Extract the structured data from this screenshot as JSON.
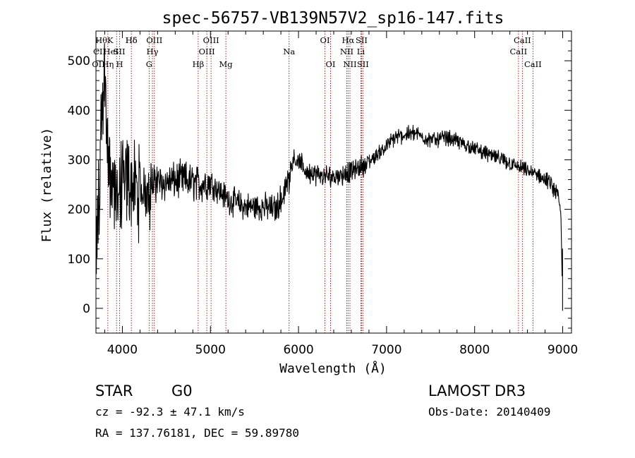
{
  "chart_data": {
    "type": "line",
    "title": "spec-56757-VB139N57V2_sp16-147.fits",
    "xlabel": "Wavelength (Å)",
    "ylabel": "Flux (relative)",
    "xlim": [
      3700,
      9100
    ],
    "ylim": [
      -50,
      560
    ],
    "xticks": [
      4000,
      5000,
      6000,
      7000,
      8000,
      9000
    ],
    "yticks": [
      0,
      100,
      200,
      300,
      400,
      500
    ],
    "grid": false,
    "line_color": "#000000",
    "marker_color": "#a01010",
    "spectrum_anchors": {
      "x": [
        3705,
        3720,
        3740,
        3770,
        3800,
        3830,
        3870,
        3920,
        3970,
        4020,
        4080,
        4150,
        4250,
        4350,
        4500,
        4700,
        4850,
        5000,
        5200,
        5400,
        5600,
        5750,
        5850,
        5950,
        6100,
        6300,
        6500,
        6650,
        6800,
        6950,
        7100,
        7300,
        7500,
        7700,
        7900,
        8100,
        8300,
        8500,
        8700,
        8850,
        8950,
        8980,
        8995,
        9000
      ],
      "y": [
        60,
        180,
        250,
        420,
        480,
        330,
        260,
        240,
        230,
        250,
        260,
        240,
        230,
        250,
        255,
        260,
        250,
        255,
        220,
        205,
        205,
        200,
        250,
        305,
        275,
        265,
        270,
        280,
        295,
        320,
        345,
        355,
        340,
        345,
        330,
        315,
        300,
        285,
        270,
        255,
        225,
        190,
        50,
        -5
      ]
    },
    "lines": [
      {
        "name": "Hη",
        "wavelength": 3835
      },
      {
        "name": "K",
        "wavelength": 3934
      },
      {
        "name": "H",
        "wavelength": 3969
      },
      {
        "name": "Hδ",
        "wavelength": 4102
      },
      {
        "name": "OIII",
        "wavelength": 4363
      },
      {
        "name": "Hγ",
        "wavelength": 4341
      },
      {
        "name": "G",
        "wavelength": 4304
      },
      {
        "name": "Hβ",
        "wavelength": 4861
      },
      {
        "name": "OIII",
        "wavelength": 5007
      },
      {
        "name": "OIII",
        "wavelength": 4959
      },
      {
        "name": "Mg",
        "wavelength": 5175
      },
      {
        "name": "Na",
        "wavelength": 5893
      },
      {
        "name": "OI",
        "wavelength": 6300
      },
      {
        "name": "OI",
        "wavelength": 6364
      },
      {
        "name": "Hα",
        "wavelength": 6563
      },
      {
        "name": "NII",
        "wavelength": 6548
      },
      {
        "name": "NII",
        "wavelength": 6584
      },
      {
        "name": "SII",
        "wavelength": 6716
      },
      {
        "name": "SII",
        "wavelength": 6731
      },
      {
        "name": "Li",
        "wavelength": 6708
      },
      {
        "name": "CaII",
        "wavelength": 8542
      },
      {
        "name": "CaII",
        "wavelength": 8498
      },
      {
        "name": "CaII",
        "wavelength": 8662
      }
    ],
    "top_labels": {
      "row1": "HθK",
      "row1b": "Hδ",
      "row2": "CII",
      "row2b": "HeI",
      "row2c": "SII",
      "row3": "OII",
      "row3b": "Hη",
      "row3c": "H"
    }
  },
  "info": {
    "object_class": "STAR",
    "subclass": "G0",
    "survey": "LAMOST DR3",
    "cz": "cz = -92.3 ± 47.1 km/s",
    "obs_date": "Obs-Date: 20140409",
    "coords": "RA = 137.76181, DEC =  59.89780"
  }
}
